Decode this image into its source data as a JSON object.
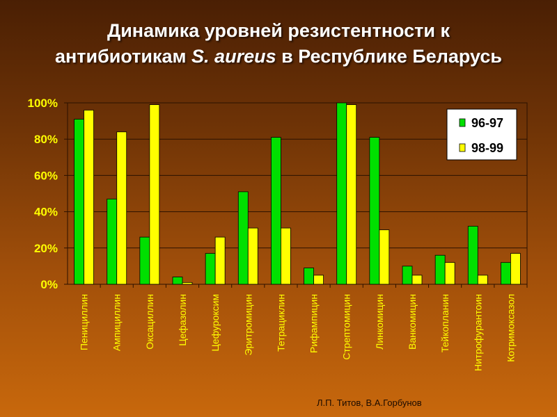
{
  "slide": {
    "title_line1": "Динамика уровней резистентности  к",
    "title_line2_pre": "антибиотикам ",
    "title_line2_italic": "S. aureus",
    "title_line2_post": " в Республике Беларусь",
    "credit": "Л.П. Титов, В.А.Горбунов"
  },
  "colors": {
    "series1": "#00e000",
    "series2": "#ffff00",
    "grid": "#2a1000",
    "tick_text": "#ffff00"
  },
  "chart_data": {
    "type": "bar",
    "categories": [
      "Пенициллин",
      "Ампициллин",
      "Оксациллин",
      "Цефазолин",
      "Цефуроксим",
      "Эритромицин",
      "Тетрациклин",
      "Рифампицин",
      "Стрептомицин",
      "Линкомицин",
      "Ванкомицин",
      "Тейкопланин",
      "Нитрофурантоин",
      "Котримоксазол"
    ],
    "series": [
      {
        "name": "96-97",
        "values": [
          91,
          47,
          26,
          4,
          17,
          51,
          81,
          9,
          100,
          81,
          10,
          16,
          32,
          12
        ]
      },
      {
        "name": "98-99",
        "values": [
          96,
          84,
          99,
          1,
          26,
          31,
          31,
          5,
          99,
          30,
          5,
          12,
          5,
          17
        ]
      }
    ],
    "ylim": [
      0,
      100
    ],
    "yticks": [
      "0%",
      "20%",
      "40%",
      "60%",
      "80%",
      "100%"
    ],
    "grid": true,
    "legend_position": "top-right"
  }
}
